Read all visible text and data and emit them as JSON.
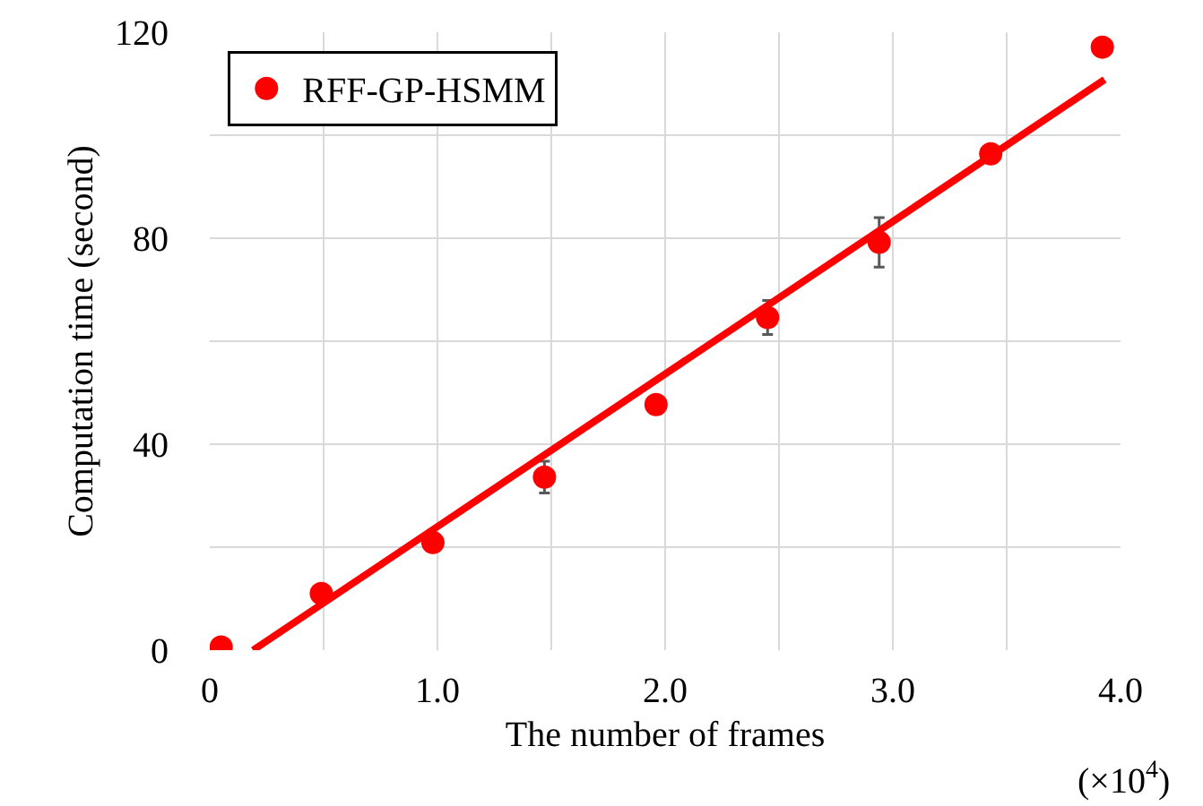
{
  "chart_data": {
    "type": "scatter",
    "xlabel": "The number of frames",
    "ylabel": "Computation time (second)",
    "annotations": [
      "(×10$^{4}$)"
    ],
    "xlim": [
      0,
      4.0
    ],
    "xticks": [
      0,
      {
        "value": 0.5,
        "label": null
      },
      {
        "value": 1,
        "label": "1.0"
      },
      {
        "value": 1.5,
        "label": null
      },
      {
        "value": 2,
        "label": "2.0"
      },
      {
        "value": 2.5,
        "label": null
      },
      {
        "value": 3,
        "label": "3.0"
      },
      {
        "value": 3.5,
        "label": null
      },
      {
        "value": 4,
        "label": "4.0"
      }
    ],
    "ylim": [
      0,
      120
    ],
    "yticks": [
      0,
      {
        "value": 20,
        "label": null
      },
      40,
      {
        "value": 60,
        "label": null
      },
      80,
      {
        "value": 100,
        "label": null
      },
      120
    ],
    "grid": true,
    "legend": "top left",
    "marker": "circle",
    "series": [
      {
        "name": "RFF-GP-HSMM",
        "color": "#ff0000",
        "x": [
          0.05,
          0.49,
          0.98,
          1.47,
          1.96,
          2.45,
          2.94,
          3.43,
          3.92
        ],
        "values": [
          0.6,
          11.0,
          20.9,
          33.6,
          47.7,
          64.6,
          79.2,
          96.4,
          117.1
        ],
        "errors": [
          null,
          null,
          null,
          3.1,
          null,
          3.3,
          4.8,
          null,
          null
        ]
      },
      {
        "type": "line",
        "color": "#ff0000",
        "marker": "none",
        "x": [
          0.19,
          3.93
        ],
        "values": [
          0,
          110.8
        ]
      }
    ]
  }
}
